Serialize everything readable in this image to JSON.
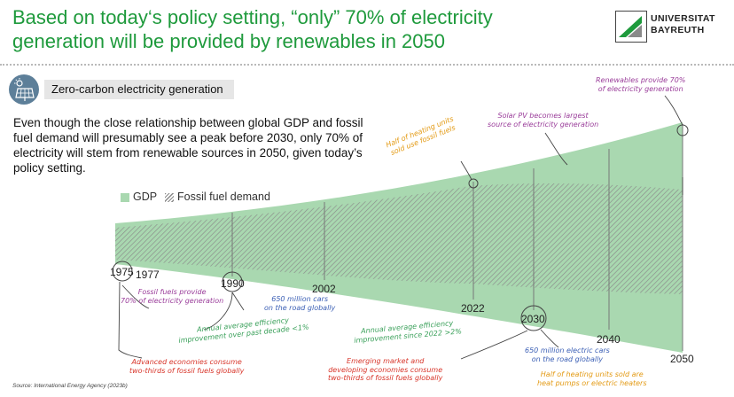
{
  "title": "Based on today‘s policy setting, “only” 70% of electricity generation will be provided by renewables in 2050",
  "logo": {
    "line1": "UNIVERSITAT",
    "line2": "BAYREUTH"
  },
  "section": {
    "label": "Zero-carbon electricity generation",
    "icon": "solar-panel-icon"
  },
  "body_text": "Even though the close relationship between global GDP and fossil fuel demand will presumably see a peak before 2030, only 70% of electricity will stem from renewable sources in 2050, given today’s policy setting.",
  "legend": {
    "gdp": "GDP",
    "fossil": "Fossil fuel demand"
  },
  "years": {
    "y1975": "1975",
    "y1977": "1977",
    "y1990": "1990",
    "y2002": "2002",
    "y2022": "2022",
    "y2030": "2030",
    "y2040": "2040",
    "y2050": "2050"
  },
  "annotations": {
    "renewables_70": [
      "Renewables provide 70%",
      "of electricity generation"
    ],
    "solar_pv": [
      "Solar PV becomes largest",
      "source of electricity generation"
    ],
    "half_heating_fossil": [
      "Half of heating units",
      "sold use fossil fuels"
    ],
    "fossil_70": [
      "Fossil fuels provide",
      "70% of electricity generation"
    ],
    "cars_650m": [
      "650 million cars",
      "on the road globally"
    ],
    "eff_past": [
      "Annual average efficiency",
      "improvement over past decade <1%"
    ],
    "eff_since": [
      "Annual average efficiency",
      "improvement since 2022 >2%"
    ],
    "ev_650m": [
      "650 million electric cars",
      "on the road globally"
    ],
    "adv_economies": [
      "Advanced economies consume",
      "two-thirds of fossil fuels globally"
    ],
    "emerging": [
      "Emerging market and",
      "developing economies consume",
      "two-thirds of fossil fuels globally"
    ],
    "half_heating_hp": [
      "Half of heating units sold are",
      "heat pumps or electric heaters"
    ]
  },
  "colors": {
    "title_green": "#1e9a3c",
    "gdp_fill": "#a9d8b0",
    "hatch": "#8a8a8a",
    "purple": "#9a3d9a",
    "orange": "#e39a14",
    "green": "#3aa05a",
    "blue": "#3b5fb5",
    "red": "#d8352a"
  },
  "source": "Source: International Energy Agency (2023b)"
}
